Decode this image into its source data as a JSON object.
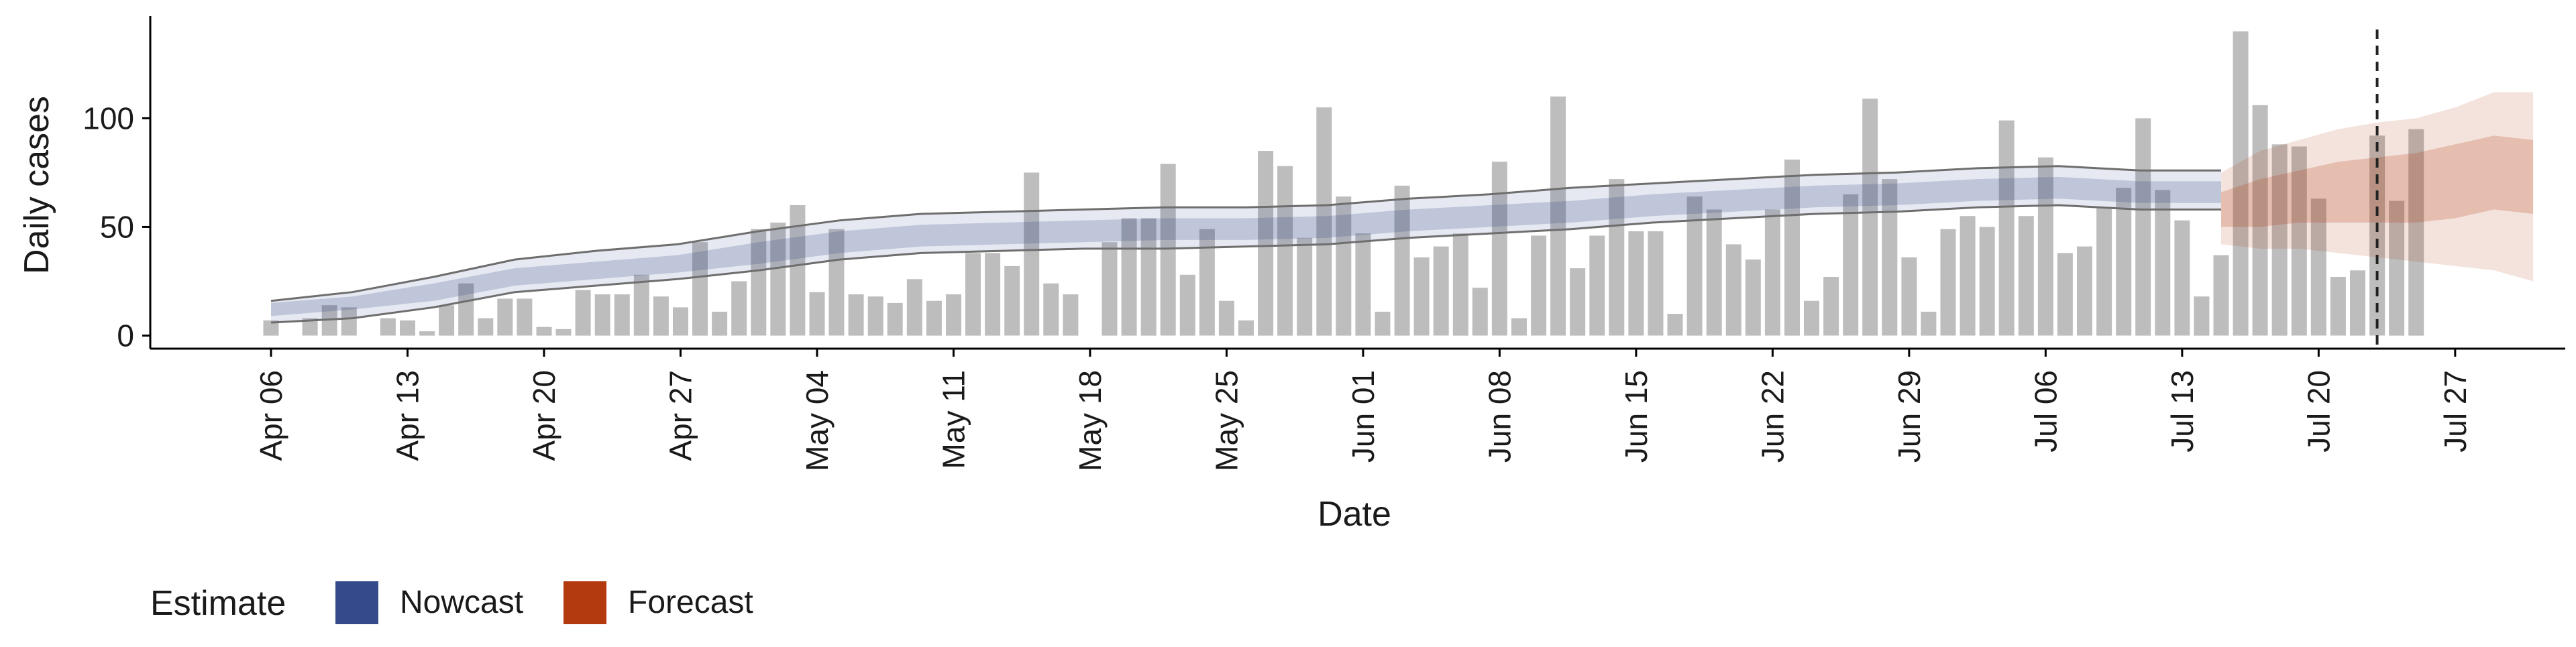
{
  "chart_data": {
    "type": "bar",
    "xlabel": "Date",
    "ylabel": "Daily cases",
    "x_ticks": [
      "Apr 06",
      "Apr 13",
      "Apr 20",
      "Apr 27",
      "May 04",
      "May 11",
      "May 18",
      "May 25",
      "Jun 01",
      "Jun 08",
      "Jun 15",
      "Jun 22",
      "Jun 29",
      "Jul 06",
      "Jul 13",
      "Jul 20",
      "Jul 27"
    ],
    "y_ticks": [
      0,
      50,
      100
    ],
    "ylim": [
      -6,
      147
    ],
    "x_range_days": [
      -6,
      114
    ],
    "x_start_date": "Apr 06",
    "vline_day": 108,
    "grid": false,
    "legend": {
      "title": "Estimate",
      "position": "bottom-left",
      "items": [
        {
          "label": "Nowcast",
          "color": "#354a8a"
        },
        {
          "label": "Forecast",
          "color": "#b33a0e"
        }
      ]
    },
    "colors": {
      "bars": "#bdbdbd",
      "nowcast_band": "#354a8a",
      "forecast_band": "#b33a0e",
      "outer_lines": "#6e6e6e",
      "vline": "#222222"
    },
    "bars": [
      7,
      null,
      8,
      14,
      13,
      null,
      8,
      7,
      2,
      14,
      24,
      8,
      17,
      17,
      4,
      3,
      21,
      19,
      19,
      28,
      18,
      13,
      43,
      11,
      25,
      49,
      52,
      60,
      20,
      49,
      19,
      18,
      15,
      26,
      16,
      19,
      38,
      38,
      32,
      75,
      24,
      19,
      null,
      43,
      54,
      54,
      79,
      28,
      49,
      16,
      7,
      85,
      78,
      45,
      105,
      64,
      47,
      11,
      69,
      36,
      41,
      47,
      22,
      80,
      8,
      46,
      110,
      31,
      46,
      72,
      48,
      48,
      10,
      64,
      58,
      42,
      35,
      58,
      81,
      16,
      27,
      65,
      109,
      72,
      36,
      11,
      49,
      55,
      50,
      99,
      55,
      82,
      38,
      41,
      59,
      68,
      100,
      67,
      53,
      18,
      37,
      140,
      106,
      88,
      87,
      63,
      27,
      30,
      92,
      62,
      95
    ],
    "nowcast_days": [
      0,
      7,
      14,
      21,
      28,
      35,
      42,
      49,
      56,
      63,
      70,
      77,
      84,
      91,
      98,
      105,
      112,
      119,
      126,
      133,
      140,
      147,
      154,
      161,
      168
    ],
    "nowcast_median": [
      12,
      15,
      20,
      27,
      30,
      33,
      38,
      43,
      46,
      47,
      48,
      49,
      49,
      50,
      53,
      55,
      57,
      60,
      62,
      64,
      65,
      67,
      68,
      66,
      66
    ],
    "nowcast_inner_lo": [
      9,
      12,
      16,
      23,
      26,
      29,
      33,
      38,
      41,
      42,
      43,
      44,
      44,
      45,
      48,
      50,
      52,
      55,
      57,
      59,
      60,
      62,
      63,
      61,
      61
    ],
    "nowcast_inner_hi": [
      15,
      18,
      24,
      31,
      34,
      37,
      43,
      48,
      51,
      52,
      53,
      54,
      54,
      55,
      58,
      60,
      62,
      65,
      67,
      69,
      70,
      72,
      73,
      71,
      71
    ],
    "nowcast_outer_lo": [
      6,
      8,
      13,
      20,
      23,
      26,
      30,
      35,
      38,
      39,
      40,
      40,
      41,
      42,
      45,
      47,
      49,
      52,
      54,
      56,
      57,
      59,
      60,
      58,
      58
    ],
    "nowcast_outer_hi": [
      16,
      20,
      27,
      35,
      39,
      42,
      48,
      53,
      56,
      57,
      58,
      59,
      59,
      60,
      63,
      65,
      68,
      70,
      72,
      74,
      75,
      77,
      78,
      76,
      76
    ],
    "forecast_days": [
      98,
      100,
      102,
      104,
      106,
      108,
      110,
      112,
      114
    ],
    "forecast_median": [
      58,
      62,
      65,
      68,
      70,
      72,
      75,
      80,
      78
    ],
    "forecast_inner_lo": [
      50,
      50,
      52,
      52,
      52,
      52,
      54,
      58,
      56
    ],
    "forecast_inner_hi": [
      66,
      72,
      76,
      80,
      82,
      84,
      88,
      92,
      90
    ],
    "forecast_outer_lo": [
      42,
      40,
      40,
      38,
      36,
      34,
      32,
      30,
      25
    ],
    "forecast_outer_hi": [
      75,
      85,
      90,
      95,
      98,
      100,
      105,
      112,
      112
    ]
  }
}
